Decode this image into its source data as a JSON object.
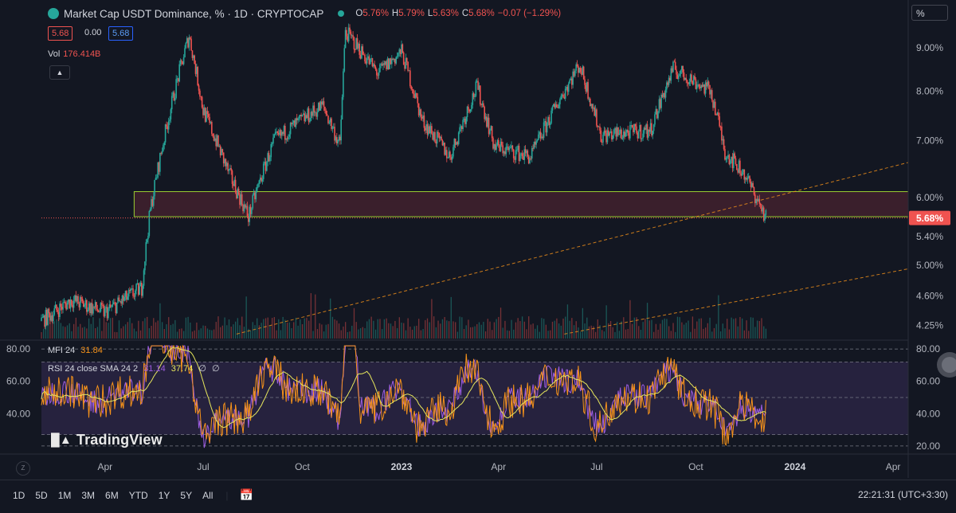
{
  "header": {
    "title": "Market Cap USDT Dominance, % · 1D · CRYPTOCAP",
    "open_label": "O",
    "open": "5.76%",
    "high_label": "H",
    "high": "5.79%",
    "low_label": "L",
    "low": "5.63%",
    "close_label": "C",
    "close": "5.68%",
    "change": "−0.07 (−1.29%)"
  },
  "price_boxes": {
    "bid": "5.68",
    "spread": "0.00",
    "ask": "5.68"
  },
  "volume": {
    "label": "Vol",
    "value": "176.414B"
  },
  "scale_mode": "%",
  "price_axis": {
    "ticks": [
      "9.00%",
      "8.00%",
      "7.00%",
      "6.00%",
      "5.40%",
      "5.00%",
      "4.60%",
      "4.25%"
    ],
    "tick_values": [
      9.0,
      8.0,
      7.0,
      6.0,
      5.4,
      5.0,
      4.6,
      4.25
    ],
    "last_label": "5.68%",
    "last_value": 5.68
  },
  "indicator_axis": {
    "left_ticks": [
      "80.00",
      "60.00",
      "40.00"
    ],
    "right_ticks": [
      "80.00",
      "60.00",
      "40.00",
      "20.00"
    ],
    "tick_values": [
      80,
      60,
      40,
      20
    ]
  },
  "indicators": {
    "mfi": {
      "label": "MFI 24",
      "value": "31.84"
    },
    "rsi": {
      "label": "RSI 24 close SMA 24 2",
      "value1": "31.14",
      "value2": "37.74",
      "extra1": "∅",
      "extra2": "∅"
    }
  },
  "x_axis": {
    "labels": [
      "Apr",
      "Jul",
      "Oct",
      "2023",
      "Apr",
      "Jul",
      "Oct",
      "2024",
      "Apr"
    ]
  },
  "watermark": "TradingView",
  "bottom": {
    "ranges": [
      "1D",
      "5D",
      "1M",
      "3M",
      "6M",
      "YTD",
      "1Y",
      "5Y",
      "All"
    ],
    "time": "22:21:31 (UTC+3:30)"
  },
  "colors": {
    "up": "#26a69a",
    "down": "#ef5350",
    "mfi": "#f7931a",
    "rsi": "#9c5de0",
    "sma": "#e6e65c",
    "zone": "#6b2a3a",
    "zone_border": "#9acd32"
  },
  "chart_data": {
    "type": "candlestick",
    "title": "Market Cap USDT Dominance, %",
    "interval": "1D",
    "x_range": [
      "2022-02",
      "2024-04"
    ],
    "y_range": [
      4.1,
      9.6
    ],
    "y_scale": "log",
    "key_points": [
      {
        "date": "2022-02-01",
        "value": 4.3
      },
      {
        "date": "2022-03-01",
        "value": 4.55
      },
      {
        "date": "2022-04-01",
        "value": 4.4
      },
      {
        "date": "2022-05-05",
        "value": 4.7
      },
      {
        "date": "2022-05-13",
        "value": 5.8
      },
      {
        "date": "2022-06-18",
        "value": 9.3
      },
      {
        "date": "2022-07-01",
        "value": 7.6
      },
      {
        "date": "2022-07-25",
        "value": 6.4
      },
      {
        "date": "2022-08-12",
        "value": 5.7
      },
      {
        "date": "2022-09-05",
        "value": 7.0
      },
      {
        "date": "2022-10-20",
        "value": 7.7
      },
      {
        "date": "2022-11-05",
        "value": 6.9
      },
      {
        "date": "2022-11-10",
        "value": 9.4
      },
      {
        "date": "2022-12-10",
        "value": 8.4
      },
      {
        "date": "2023-01-01",
        "value": 8.9
      },
      {
        "date": "2023-01-20",
        "value": 7.4
      },
      {
        "date": "2023-02-15",
        "value": 6.7
      },
      {
        "date": "2023-03-12",
        "value": 8.1
      },
      {
        "date": "2023-03-28",
        "value": 6.9
      },
      {
        "date": "2023-05-01",
        "value": 6.7
      },
      {
        "date": "2023-06-15",
        "value": 8.6
      },
      {
        "date": "2023-07-05",
        "value": 7.1
      },
      {
        "date": "2023-08-20",
        "value": 7.2
      },
      {
        "date": "2023-09-10",
        "value": 8.5
      },
      {
        "date": "2023-10-15",
        "value": 8.0
      },
      {
        "date": "2023-10-28",
        "value": 6.8
      },
      {
        "date": "2023-11-15",
        "value": 6.4
      },
      {
        "date": "2023-12-05",
        "value": 5.68
      }
    ],
    "last_close": 5.68,
    "support_zone": [
      5.7,
      6.1
    ],
    "mfi_last": 31.84,
    "rsi_last": 31.14,
    "rsi_sma_last": 37.74,
    "indicator_range": [
      15,
      85
    ],
    "indicator_levels": [
      80,
      72,
      50,
      27,
      20
    ],
    "grid": false
  }
}
